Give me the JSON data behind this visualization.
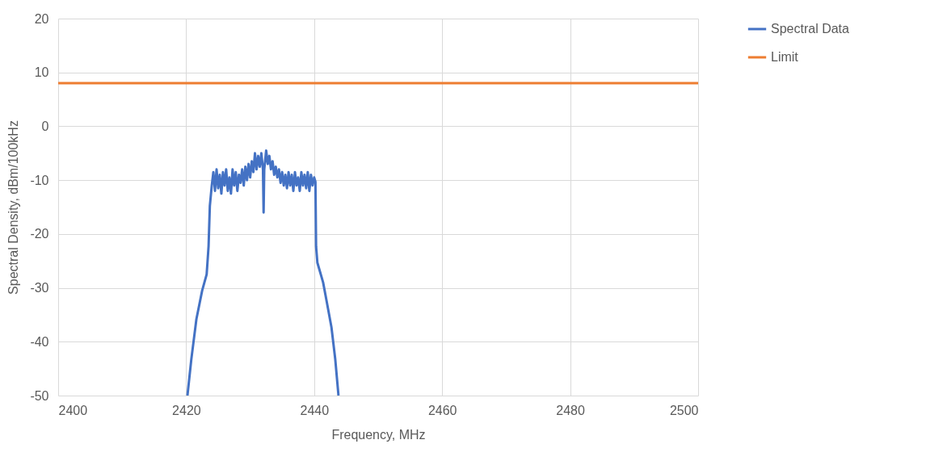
{
  "chart_data": {
    "type": "line",
    "xlabel": "Frequency, MHz",
    "ylabel": "Spectral Density, dBm/100kHz",
    "xlim": [
      2400,
      2500
    ],
    "xticks": [
      2400,
      2420,
      2440,
      2460,
      2480,
      2500
    ],
    "ylim": [
      -50,
      20
    ],
    "yticks": [
      -50,
      -40,
      -30,
      -20,
      -10,
      0,
      10,
      20
    ],
    "grid": true,
    "legend": "right",
    "line_style": "solid",
    "marker": "none",
    "series": [
      {
        "name": "Spectral Data",
        "color": "#4472c4",
        "x": [
          2420.2,
          2420.8,
          2421.6,
          2422.5,
          2423.2,
          2423.5,
          2423.7,
          2424.0,
          2424.25,
          2424.5,
          2424.75,
          2425.0,
          2425.25,
          2425.5,
          2425.75,
          2426.0,
          2426.25,
          2426.5,
          2426.75,
          2427.0,
          2427.25,
          2427.5,
          2427.75,
          2428.0,
          2428.25,
          2428.5,
          2428.75,
          2429.0,
          2429.25,
          2429.5,
          2429.75,
          2430.0,
          2430.25,
          2430.5,
          2430.75,
          2431.0,
          2431.25,
          2431.5,
          2431.75,
          2432.0,
          2432.1,
          2432.2,
          2432.5,
          2432.75,
          2433.0,
          2433.25,
          2433.5,
          2433.75,
          2434.0,
          2434.25,
          2434.5,
          2434.75,
          2435.0,
          2435.25,
          2435.5,
          2435.75,
          2436.0,
          2436.25,
          2436.5,
          2436.75,
          2437.0,
          2437.25,
          2437.5,
          2437.75,
          2438.0,
          2438.25,
          2438.5,
          2438.75,
          2439.0,
          2439.25,
          2439.5,
          2439.75,
          2440.0,
          2440.2,
          2440.3,
          2440.5,
          2441.4,
          2442.0,
          2442.7,
          2443.3,
          2443.8
        ],
        "values": [
          -50,
          -43.3,
          -35.8,
          -30.5,
          -27.5,
          -22.3,
          -14.8,
          -11,
          -8.5,
          -12,
          -8,
          -11.5,
          -9,
          -12.5,
          -8.5,
          -11,
          -8,
          -12,
          -9.5,
          -12.5,
          -8,
          -11,
          -8.5,
          -12,
          -9,
          -10.5,
          -8,
          -11,
          -7.5,
          -10,
          -7,
          -9.5,
          -6.5,
          -8.5,
          -5,
          -8,
          -5.5,
          -7.5,
          -5,
          -8,
          -16,
          -8,
          -4.5,
          -7,
          -5.5,
          -8,
          -6.5,
          -9,
          -7.5,
          -9.5,
          -8,
          -10.5,
          -8.5,
          -11,
          -9,
          -11.5,
          -8.5,
          -11,
          -9,
          -12,
          -8.5,
          -11,
          -9.5,
          -12,
          -8.5,
          -11,
          -9,
          -11.5,
          -8.5,
          -12,
          -9,
          -11,
          -9.5,
          -10.3,
          -22.3,
          -25.3,
          -29,
          -32.8,
          -37.3,
          -43.3,
          -50
        ]
      },
      {
        "name": "Limit",
        "color": "#ed7d31",
        "x": [
          2400,
          2500
        ],
        "values": [
          8,
          8
        ]
      }
    ]
  }
}
